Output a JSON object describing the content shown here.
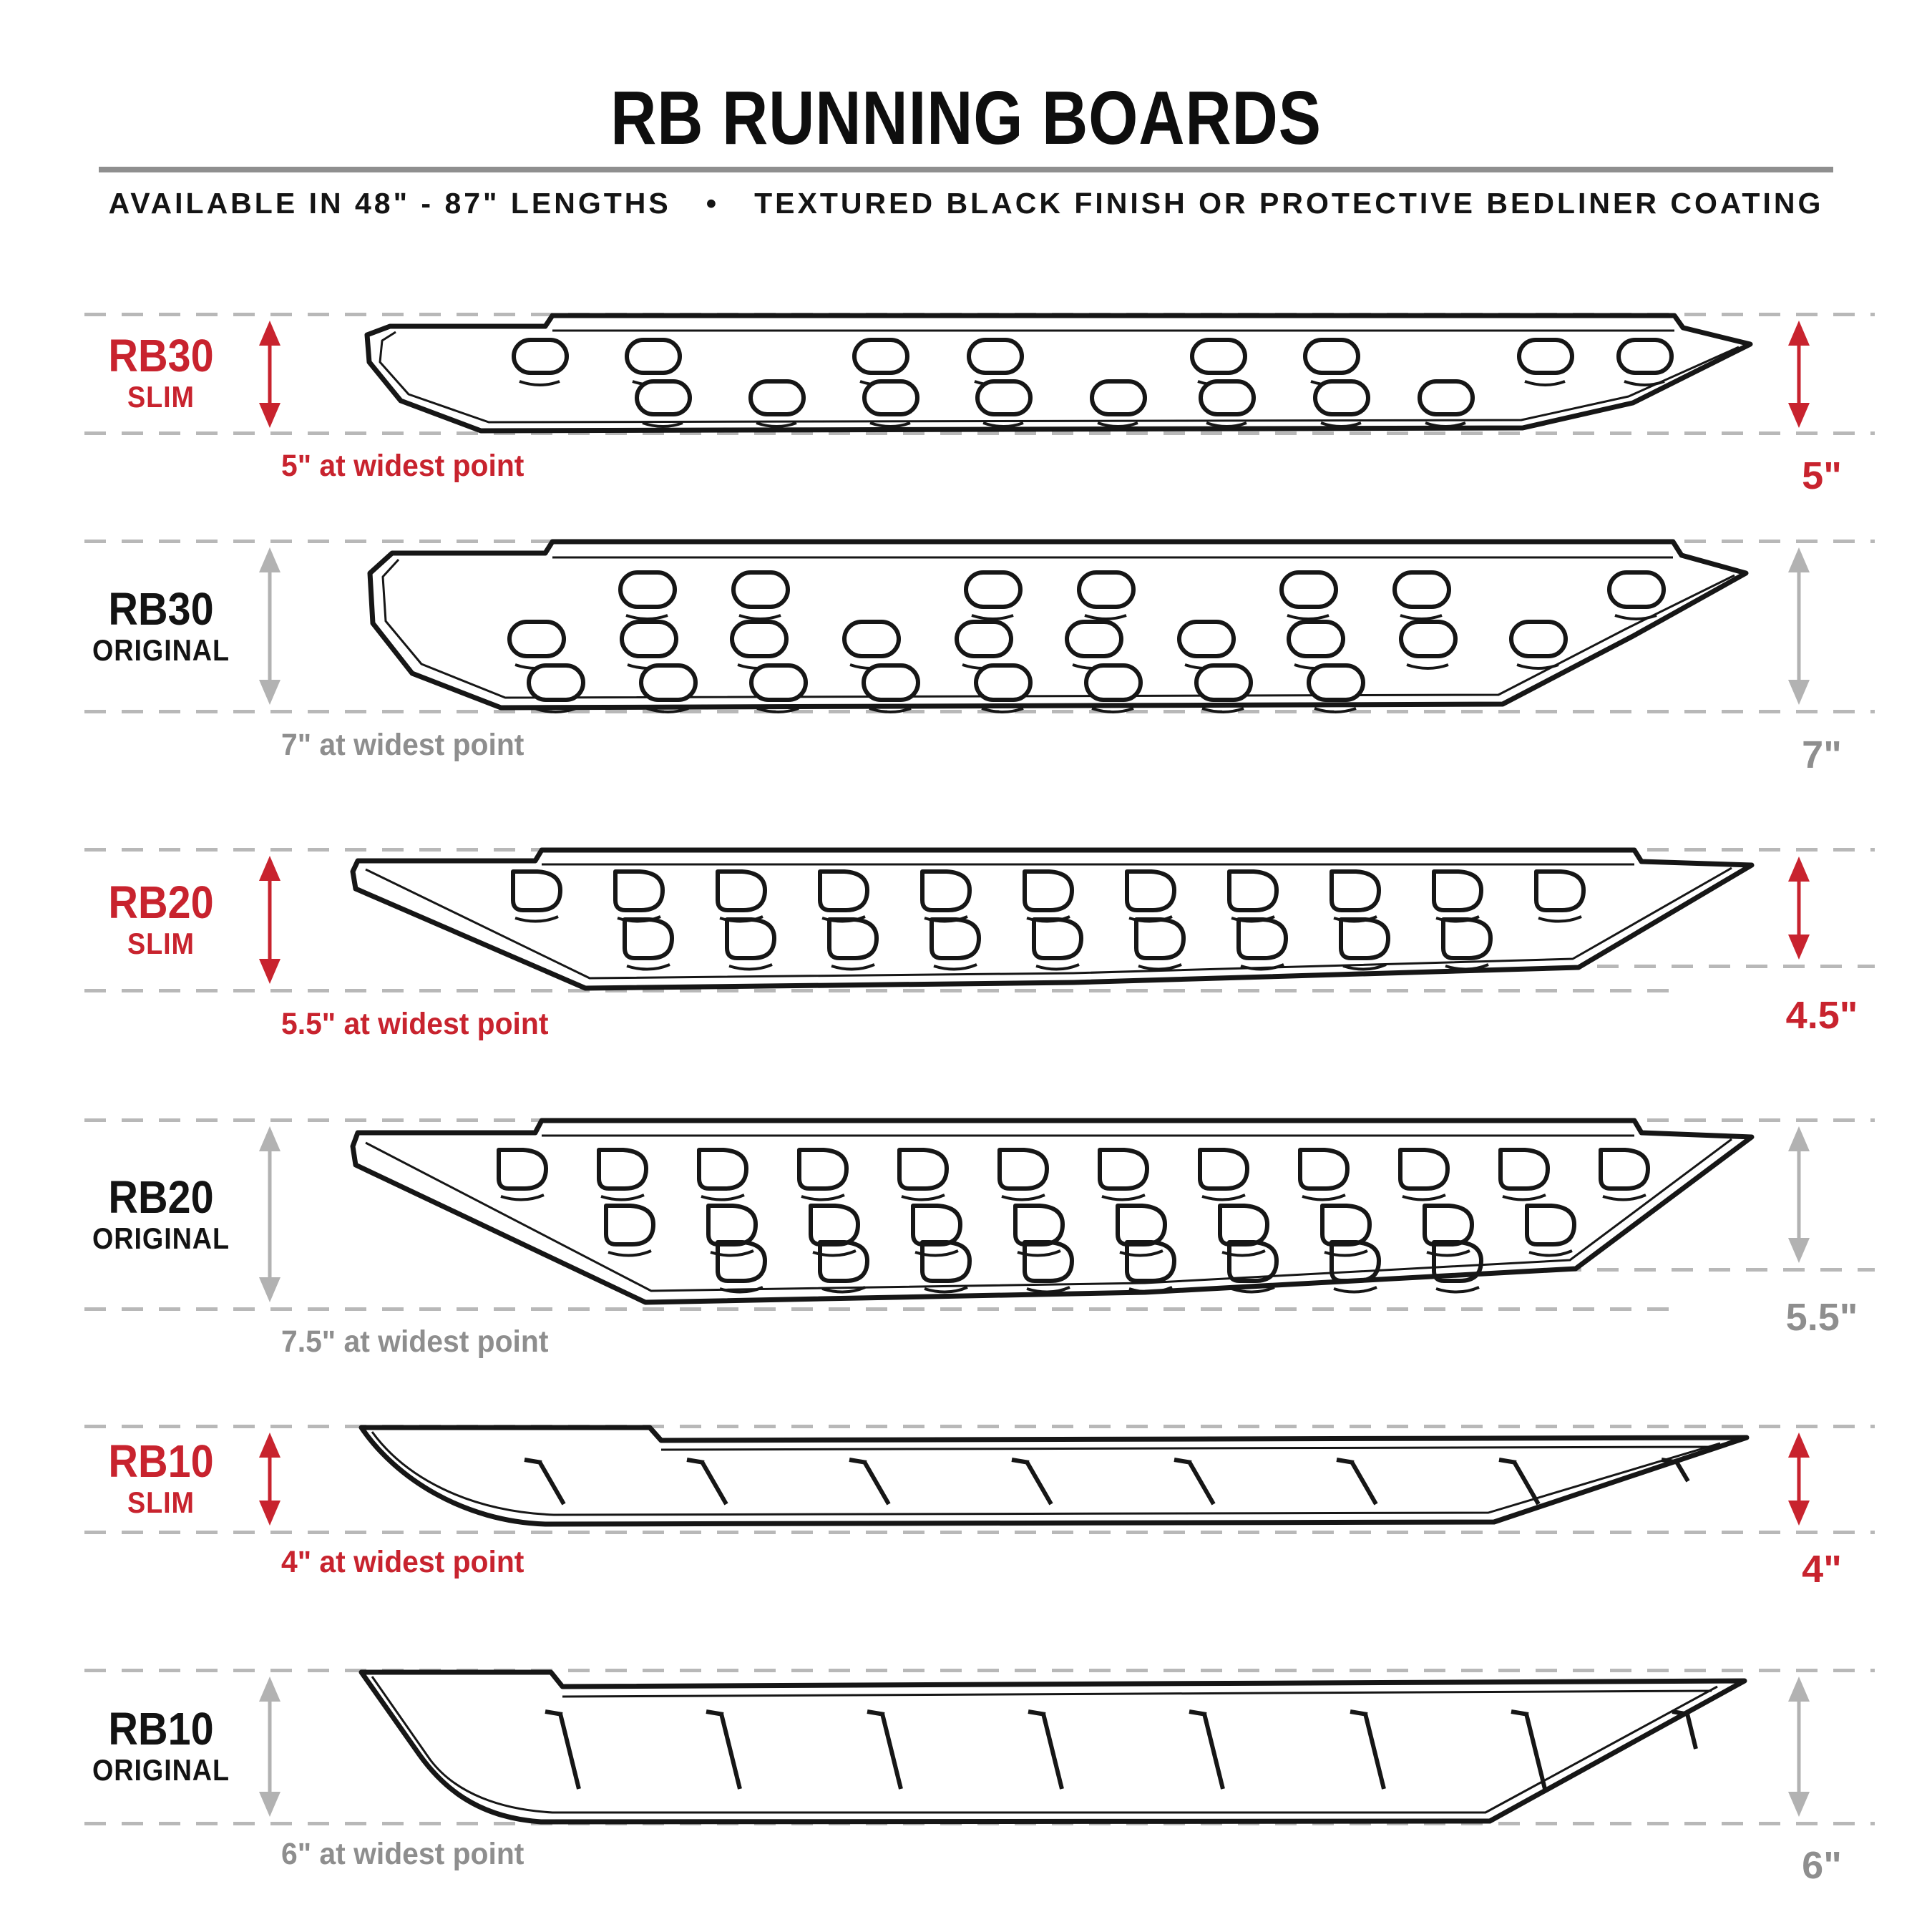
{
  "header": {
    "title": "RB RUNNING BOARDS",
    "subtitle": "AVAILABLE IN 48\" - 87\" LENGTHS  •  TEXTURED BLACK FINISH OR PROTECTIVE BEDLINER COATING"
  },
  "colors": {
    "accent_red": "#c8232e",
    "gray_text": "#8e8e8e",
    "gray_arrow": "#b2b2b2",
    "dashed_line": "#b8b8b8",
    "black_text": "#131313"
  },
  "rows": [
    {
      "model": "RB30",
      "variant": "SLIM",
      "accent": "red",
      "caption": "5\" at widest point",
      "right_dim": "5\""
    },
    {
      "model": "RB30",
      "variant": "ORIGINAL",
      "accent": "gray",
      "caption": "7\" at widest point",
      "right_dim": "7\""
    },
    {
      "model": "RB20",
      "variant": "SLIM",
      "accent": "red",
      "caption": "5.5\" at widest point",
      "right_dim": "4.5\""
    },
    {
      "model": "RB20",
      "variant": "ORIGINAL",
      "accent": "gray",
      "caption": "7.5\" at widest point",
      "right_dim": "5.5\""
    },
    {
      "model": "RB10",
      "variant": "SLIM",
      "accent": "red",
      "caption": "4\" at widest point",
      "right_dim": "4\""
    },
    {
      "model": "RB10",
      "variant": "ORIGINAL",
      "accent": "gray",
      "caption": "6\" at widest point",
      "right_dim": "6\""
    }
  ]
}
